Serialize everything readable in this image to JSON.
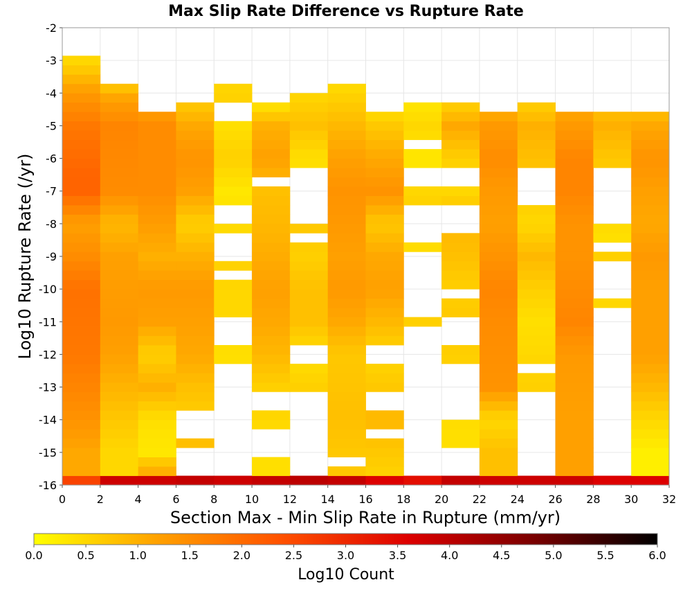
{
  "chart_data": {
    "type": "heatmap",
    "title": "Max Slip Rate Difference vs Rupture Rate",
    "xlabel": "Section Max - Min Slip Rate in Rupture (mm/yr)",
    "ylabel": "Log10 Rupture Rate (/yr)",
    "xlim": [
      0,
      32
    ],
    "ylim": [
      -16,
      -2
    ],
    "x_ticks": [
      "0",
      "2",
      "4",
      "6",
      "8",
      "10",
      "12",
      "14",
      "16",
      "18",
      "20",
      "22",
      "24",
      "26",
      "28",
      "30",
      "32"
    ],
    "y_ticks": [
      "-2",
      "-3",
      "-4",
      "-5",
      "-6",
      "-7",
      "-8",
      "-9",
      "-10",
      "-11",
      "-12",
      "-13",
      "-14",
      "-15",
      "-16"
    ],
    "x_bin_width": 2,
    "y_bin_height": 0.2857,
    "colorbar": {
      "label": "Log10 Count",
      "min": 0.0,
      "max": 6.0,
      "ticks": [
        "0.0",
        "0.5",
        "1.0",
        "1.5",
        "2.0",
        "2.5",
        "3.0",
        "3.5",
        "4.0",
        "4.5",
        "5.0",
        "5.5",
        "6.0"
      ],
      "colors": [
        "#ffff00",
        "#ffa000",
        "#ff5000",
        "#dd0000",
        "#7a0000",
        "#000000"
      ]
    },
    "grid": true,
    "columns": [
      {
        "x_range": [
          0,
          2
        ],
        "profile": [
          [
            -16,
            2.6
          ],
          [
            -15,
            1.1
          ],
          [
            -14,
            1.4
          ],
          [
            -12,
            1.8
          ],
          [
            -10,
            1.9
          ],
          [
            -9,
            1.5
          ],
          [
            -8,
            1.2
          ],
          [
            -7,
            2.1
          ],
          [
            -6.5,
            2.1
          ],
          [
            -5,
            1.8
          ],
          [
            -4,
            1.3
          ],
          [
            -3.3,
            0.7
          ],
          [
            -3,
            0.5
          ]
        ]
      },
      {
        "x_range": [
          2,
          4
        ],
        "profile": [
          [
            -16,
            3.8
          ],
          [
            -15,
            0.5
          ],
          [
            -14,
            0.7
          ],
          [
            -12,
            1.2
          ],
          [
            -11,
            1.3
          ],
          [
            -9,
            1.2
          ],
          [
            -8,
            0.9
          ],
          [
            -7,
            1.5
          ],
          [
            -5,
            1.6
          ],
          [
            -4.2,
            1.2
          ],
          [
            -3.6,
            0.5
          ]
        ]
      },
      {
        "x_range": [
          4,
          6
        ],
        "profile": [
          [
            -16,
            3.8
          ],
          [
            -15.5,
            1.0
          ],
          [
            -15,
            0.3
          ],
          [
            -14,
            0.4
          ],
          [
            -13,
            1.0
          ],
          [
            -12,
            0.6
          ],
          [
            -11,
            1.2
          ],
          [
            -10,
            1.3
          ],
          [
            -9,
            1.0
          ],
          [
            -7,
            1.5
          ],
          [
            -5,
            1.5
          ],
          [
            -4.5,
            1.2
          ]
        ],
        "gaps": [
          [
            -4.5,
            -4.2
          ]
        ]
      },
      {
        "x_range": [
          6,
          8
        ],
        "profile": [
          [
            -16,
            3.9
          ],
          [
            -15,
            0.9
          ],
          [
            -14,
            0.6
          ],
          [
            -13,
            0.8
          ],
          [
            -12,
            1.1
          ],
          [
            -10,
            1.3
          ],
          [
            -9,
            1.0
          ],
          [
            -8,
            0.6
          ],
          [
            -7,
            1.2
          ],
          [
            -6,
            1.4
          ],
          [
            -5,
            1.1
          ],
          [
            -4.2,
            0.6
          ]
        ],
        "gaps": [
          [
            -15.8,
            -14.8
          ],
          [
            -14.5,
            -13.8
          ]
        ]
      },
      {
        "x_range": [
          8,
          10
        ],
        "profile": [
          [
            -16,
            3.8
          ],
          [
            -15.8,
            0.5
          ],
          [
            -12,
            0.4
          ],
          [
            -11,
            0.5
          ],
          [
            -10,
            0.5
          ],
          [
            -9,
            0.6
          ],
          [
            -7,
            0.3
          ],
          [
            -6,
            0.6
          ],
          [
            -5,
            0.4
          ],
          [
            -4,
            0.6
          ],
          [
            -3.6,
            0.4
          ]
        ],
        "gaps": [
          [
            -15.8,
            -12.2
          ],
          [
            -11.8,
            -11.0
          ],
          [
            -9.8,
            -9.5
          ],
          [
            -9.2,
            -8.4
          ],
          [
            -8.0,
            -7.3
          ],
          [
            -4.8,
            -4.2
          ]
        ]
      },
      {
        "x_range": [
          10,
          12
        ],
        "profile": [
          [
            -16,
            3.9
          ],
          [
            -15,
            0.4
          ],
          [
            -14,
            0.5
          ],
          [
            -13,
            0.6
          ],
          [
            -12,
            0.9
          ],
          [
            -11,
            1.1
          ],
          [
            -10,
            1.2
          ],
          [
            -8,
            0.9
          ],
          [
            -7,
            0.8
          ],
          [
            -6,
            1.2
          ],
          [
            -5,
            1.0
          ],
          [
            -4.2,
            0.2
          ]
        ],
        "gaps": [
          [
            -15.2,
            -14.2
          ],
          [
            -13.8,
            -13.2
          ],
          [
            -6.9,
            -6.6
          ]
        ]
      },
      {
        "x_range": [
          12,
          14
        ],
        "profile": [
          [
            -16,
            4.0
          ],
          [
            -13,
            0.6
          ],
          [
            -12,
            0.4
          ],
          [
            -11,
            0.8
          ],
          [
            -10,
            0.8
          ],
          [
            -9,
            0.6
          ],
          [
            -8,
            0.7
          ],
          [
            -6,
            0.4
          ],
          [
            -5,
            0.8
          ],
          [
            -4,
            0.5
          ]
        ],
        "gaps": [
          [
            -15.8,
            -13.2
          ],
          [
            -12.2,
            -11.8
          ],
          [
            -8.7,
            -8.3
          ],
          [
            -7.9,
            -6.4
          ]
        ]
      },
      {
        "x_range": [
          14,
          16
        ],
        "profile": [
          [
            -16,
            3.9
          ],
          [
            -15,
            0.7
          ],
          [
            -14,
            0.8
          ],
          [
            -12,
            0.7
          ],
          [
            -11,
            1.1
          ],
          [
            -10,
            1.3
          ],
          [
            -9,
            1.2
          ],
          [
            -7,
            1.4
          ],
          [
            -6,
            1.2
          ],
          [
            -5,
            0.9
          ],
          [
            -3.6,
            0.4
          ]
        ],
        "gaps": [
          [
            -15.5,
            -15.2
          ],
          [
            -13.0,
            -12.8
          ]
        ]
      },
      {
        "x_range": [
          16,
          18
        ],
        "profile": [
          [
            -16,
            3.6
          ],
          [
            -15.5,
            0.6
          ],
          [
            -14,
            0.9
          ],
          [
            -13,
            0.7
          ],
          [
            -12,
            0.5
          ],
          [
            -11,
            0.9
          ],
          [
            -10,
            1.2
          ],
          [
            -9,
            1.1
          ],
          [
            -8,
            0.7
          ],
          [
            -7,
            1.4
          ],
          [
            -6,
            1.1
          ],
          [
            -5,
            0.7
          ],
          [
            -4.5,
            0.4
          ]
        ],
        "gaps": [
          [
            -14.6,
            -14.2
          ],
          [
            -13.8,
            -13.2
          ],
          [
            -12.4,
            -11.8
          ]
        ]
      },
      {
        "x_range": [
          18,
          20
        ],
        "profile": [
          [
            -16,
            3.4
          ],
          [
            -11,
            0.6
          ],
          [
            -9,
            0.4
          ],
          [
            -7.5,
            0.6
          ],
          [
            -6,
            0.3
          ],
          [
            -5,
            0.5
          ],
          [
            -4.2,
            0.3
          ]
        ],
        "gaps": [
          [
            -15.8,
            -11.2
          ],
          [
            -10.8,
            -9.0
          ],
          [
            -8.6,
            -7.4
          ],
          [
            -7.0,
            -6.2
          ],
          [
            -5.8,
            -5.5
          ]
        ]
      },
      {
        "x_range": [
          20,
          22
        ],
        "profile": [
          [
            -16,
            3.9
          ],
          [
            -14.5,
            0.4
          ],
          [
            -12,
            0.6
          ],
          [
            -11,
            0.7
          ],
          [
            -10,
            0.6
          ],
          [
            -9,
            0.8
          ],
          [
            -8,
            0.9
          ],
          [
            -7,
            0.5
          ],
          [
            -6,
            0.6
          ],
          [
            -5,
            1.1
          ],
          [
            -4.2,
            0.5
          ]
        ],
        "gaps": [
          [
            -15.8,
            -14.8
          ],
          [
            -14.0,
            -12.2
          ],
          [
            -11.8,
            -11.0
          ],
          [
            -10.4,
            -10.0
          ],
          [
            -8.2,
            -7.5
          ],
          [
            -6.8,
            -6.4
          ]
        ]
      },
      {
        "x_range": [
          22,
          24
        ],
        "profile": [
          [
            -16,
            3.8
          ],
          [
            -15,
            0.8
          ],
          [
            -14,
            0.5
          ],
          [
            -13,
            1.4
          ],
          [
            -11,
            1.5
          ],
          [
            -10,
            1.6
          ],
          [
            -8,
            1.2
          ],
          [
            -7,
            1.3
          ],
          [
            -6,
            1.5
          ],
          [
            -5,
            1.3
          ],
          [
            -4.5,
            1.0
          ]
        ]
      },
      {
        "x_range": [
          24,
          26
        ],
        "profile": [
          [
            -16,
            3.8
          ],
          [
            -13,
            0.6
          ],
          [
            -11,
            0.4
          ],
          [
            -10,
            0.6
          ],
          [
            -9,
            0.9
          ],
          [
            -8,
            0.5
          ],
          [
            -6,
            0.8
          ],
          [
            -5,
            1.0
          ],
          [
            -4.3,
            0.6
          ]
        ],
        "gaps": [
          [
            -15.8,
            -13.2
          ],
          [
            -12.6,
            -12.2
          ],
          [
            -7.4,
            -6.2
          ]
        ]
      },
      {
        "x_range": [
          26,
          28
        ],
        "profile": [
          [
            -16,
            3.8
          ],
          [
            -14,
            1.2
          ],
          [
            -12,
            1.3
          ],
          [
            -11,
            1.6
          ],
          [
            -10,
            1.5
          ],
          [
            -9,
            1.4
          ],
          [
            -8,
            1.4
          ],
          [
            -7,
            1.6
          ],
          [
            -6,
            1.6
          ],
          [
            -5,
            1.3
          ],
          [
            -4.5,
            1.1
          ]
        ]
      },
      {
        "x_range": [
          28,
          30
        ],
        "profile": [
          [
            -16,
            3.6
          ],
          [
            -10.5,
            0.5
          ],
          [
            -9,
            0.6
          ],
          [
            -8.5,
            0.4
          ],
          [
            -6,
            0.7
          ],
          [
            -5,
            1.0
          ],
          [
            -4.5,
            0.8
          ]
        ],
        "gaps": [
          [
            -15.8,
            -10.7
          ],
          [
            -10.3,
            -9.2
          ],
          [
            -8.8,
            -8.6
          ],
          [
            -8.0,
            -6.2
          ]
        ]
      },
      {
        "x_range": [
          30,
          32
        ],
        "profile": [
          [
            -16,
            3.6
          ],
          [
            -15,
            0.2
          ],
          [
            -14,
            0.5
          ],
          [
            -13,
            0.9
          ],
          [
            -12,
            1.2
          ],
          [
            -10,
            1.2
          ],
          [
            -9,
            1.3
          ],
          [
            -8,
            1.1
          ],
          [
            -7,
            1.2
          ],
          [
            -6,
            1.4
          ],
          [
            -5,
            1.1
          ],
          [
            -4.7,
            0.9
          ]
        ]
      }
    ]
  }
}
